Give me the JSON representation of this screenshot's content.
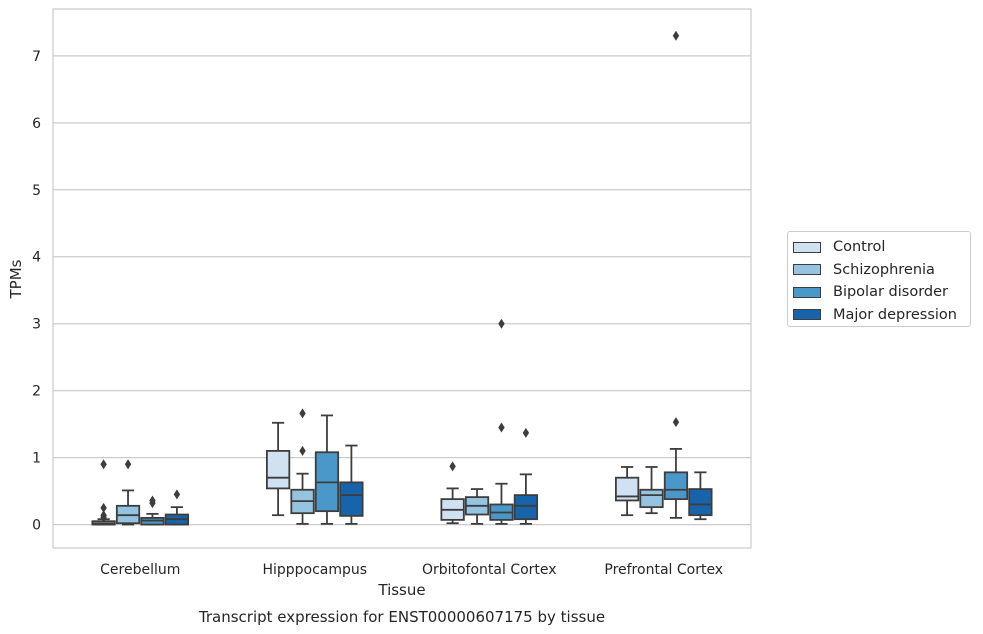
{
  "chart_data": {
    "type": "box",
    "title": "",
    "caption": "Transcript expression for ENST00000607175 by tissue",
    "xlabel": "Tissue",
    "ylabel": "TPMs",
    "ylim": [
      -0.35,
      7.7
    ],
    "yticks": [
      0,
      1,
      2,
      3,
      4,
      5,
      6,
      7
    ],
    "grid": "horizontal",
    "legend_position": "right",
    "categories": [
      "Cerebellum",
      "Hipppocampus",
      "Orbitofontal Cortex",
      "Prefrontal Cortex"
    ],
    "series": [
      {
        "name": "Control",
        "color": "#d0e1f2",
        "boxes": [
          {
            "whislo": 0.0,
            "q1": 0.0,
            "med": 0.02,
            "q3": 0.05,
            "whishi": 0.08,
            "fliers": [
              0.11,
              0.14,
              0.25,
              0.9
            ]
          },
          {
            "whislo": 0.14,
            "q1": 0.54,
            "med": 0.7,
            "q3": 1.1,
            "whishi": 1.52,
            "fliers": []
          },
          {
            "whislo": 0.02,
            "q1": 0.07,
            "med": 0.22,
            "q3": 0.38,
            "whishi": 0.54,
            "fliers": [
              0.87
            ]
          },
          {
            "whislo": 0.14,
            "q1": 0.36,
            "med": 0.42,
            "q3": 0.7,
            "whishi": 0.86,
            "fliers": []
          }
        ]
      },
      {
        "name": "Schizophrenia",
        "color": "#94c4df",
        "boxes": [
          {
            "whislo": 0.0,
            "q1": 0.02,
            "med": 0.14,
            "q3": 0.28,
            "whishi": 0.51,
            "fliers": [
              0.9
            ]
          },
          {
            "whislo": 0.01,
            "q1": 0.17,
            "med": 0.35,
            "q3": 0.52,
            "whishi": 0.76,
            "fliers": [
              1.1,
              1.66
            ]
          },
          {
            "whislo": 0.01,
            "q1": 0.15,
            "med": 0.28,
            "q3": 0.41,
            "whishi": 0.53,
            "fliers": []
          },
          {
            "whislo": 0.17,
            "q1": 0.26,
            "med": 0.44,
            "q3": 0.52,
            "whishi": 0.86,
            "fliers": []
          }
        ]
      },
      {
        "name": "Bipolar disorder",
        "color": "#4a98c9",
        "boxes": [
          {
            "whislo": 0.0,
            "q1": 0.0,
            "med": 0.06,
            "q3": 0.1,
            "whishi": 0.16,
            "fliers": [
              0.32,
              0.36
            ]
          },
          {
            "whislo": 0.01,
            "q1": 0.2,
            "med": 0.63,
            "q3": 1.08,
            "whishi": 1.63,
            "fliers": []
          },
          {
            "whislo": 0.01,
            "q1": 0.07,
            "med": 0.18,
            "q3": 0.3,
            "whishi": 0.61,
            "fliers": [
              1.45,
              3.0
            ]
          },
          {
            "whislo": 0.1,
            "q1": 0.38,
            "med": 0.52,
            "q3": 0.78,
            "whishi": 1.13,
            "fliers": [
              1.53,
              7.3
            ]
          }
        ]
      },
      {
        "name": "Major depression",
        "color": "#1764ab",
        "boxes": [
          {
            "whislo": 0.0,
            "q1": 0.0,
            "med": 0.08,
            "q3": 0.15,
            "whishi": 0.26,
            "fliers": [
              0.45
            ]
          },
          {
            "whislo": 0.01,
            "q1": 0.13,
            "med": 0.44,
            "q3": 0.63,
            "whishi": 1.18,
            "fliers": []
          },
          {
            "whislo": 0.01,
            "q1": 0.08,
            "med": 0.28,
            "q3": 0.44,
            "whishi": 0.75,
            "fliers": [
              1.37
            ]
          },
          {
            "whislo": 0.08,
            "q1": 0.14,
            "med": 0.3,
            "q3": 0.53,
            "whishi": 0.78,
            "fliers": []
          }
        ]
      }
    ]
  }
}
